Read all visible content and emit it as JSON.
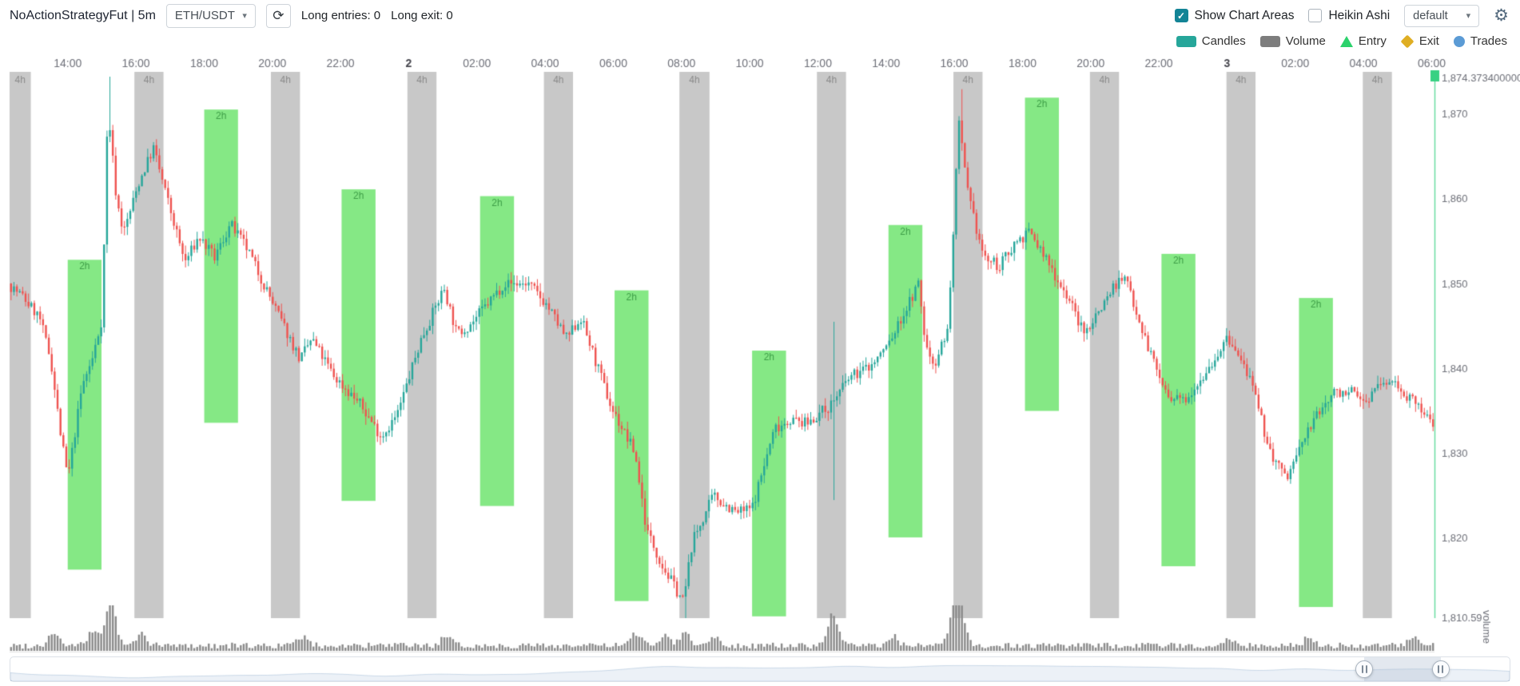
{
  "header": {
    "title": "NoActionStrategyFut | 5m",
    "pair_select": {
      "value": "ETH/USDT"
    },
    "long_entries": "Long entries: 0",
    "long_exit": "Long exit: 0",
    "show_chart_areas": {
      "label": "Show Chart Areas",
      "checked": true
    },
    "heikin_ashi": {
      "label": "Heikin Ashi",
      "checked": false
    },
    "plot_config_select": {
      "value": "default"
    }
  },
  "legend": [
    {
      "label": "Candles",
      "symbol": "rect",
      "color": "#26a69a"
    },
    {
      "label": "Volume",
      "symbol": "rect",
      "color": "#7d7d7d"
    },
    {
      "label": "Entry",
      "symbol": "triangle",
      "color": "#2bd26b"
    },
    {
      "label": "Exit",
      "symbol": "diamond",
      "color": "#dfae23"
    },
    {
      "label": "Trades",
      "symbol": "circle",
      "color": "#5b9bd5"
    }
  ],
  "chart_data": {
    "type": "candlestick",
    "pair": "ETH/USDT",
    "timeframe": "5m",
    "x_axis": {
      "position": "top",
      "tick_labels": [
        "14:00",
        "16:00",
        "18:00",
        "20:00",
        "22:00",
        "2",
        "02:00",
        "04:00",
        "06:00",
        "08:00",
        "10:00",
        "12:00",
        "14:00",
        "16:00",
        "18:00",
        "20:00",
        "22:00",
        "3",
        "02:00",
        "04:00",
        "06:00"
      ],
      "first_tick_t": 0.0408,
      "tick_step_t": 0.04786
    },
    "y_axis": {
      "position": "right",
      "max": 1874.3734,
      "min": 1810.59,
      "tick_labels": [
        "1,874.373400000",
        "1,870",
        "1,860",
        "1,850",
        "1,840",
        "1,830",
        "1,820",
        "1,810.59"
      ],
      "tick_values": [
        1874.3734,
        1870,
        1860,
        1850,
        1840,
        1830,
        1820,
        1810.59
      ]
    },
    "volume_axis_name": "volume",
    "candle_count": 490,
    "price_keyframes": [
      [
        0,
        1850
      ],
      [
        0.01,
        1848.5
      ],
      [
        0.022,
        1846
      ],
      [
        0.03,
        1841
      ],
      [
        0.037,
        1832
      ],
      [
        0.042,
        1827
      ],
      [
        0.052,
        1838
      ],
      [
        0.059,
        1841
      ],
      [
        0.066,
        1846
      ],
      [
        0.07,
        1871
      ],
      [
        0.076,
        1860
      ],
      [
        0.081,
        1856
      ],
      [
        0.092,
        1862
      ],
      [
        0.102,
        1866
      ],
      [
        0.11,
        1861
      ],
      [
        0.124,
        1852.5
      ],
      [
        0.134,
        1855.5
      ],
      [
        0.145,
        1853
      ],
      [
        0.156,
        1857
      ],
      [
        0.168,
        1854
      ],
      [
        0.192,
        1845.5
      ],
      [
        0.205,
        1841
      ],
      [
        0.213,
        1843.5
      ],
      [
        0.229,
        1839
      ],
      [
        0.246,
        1836
      ],
      [
        0.262,
        1832
      ],
      [
        0.273,
        1834.5
      ],
      [
        0.29,
        1843.5
      ],
      [
        0.306,
        1849.5
      ],
      [
        0.315,
        1844
      ],
      [
        0.326,
        1845.5
      ],
      [
        0.348,
        1850
      ],
      [
        0.365,
        1850
      ],
      [
        0.378,
        1847.5
      ],
      [
        0.392,
        1843.5
      ],
      [
        0.402,
        1846
      ],
      [
        0.423,
        1835.5
      ],
      [
        0.44,
        1830
      ],
      [
        0.448,
        1821
      ],
      [
        0.46,
        1816.5
      ],
      [
        0.474,
        1812.5
      ],
      [
        0.48,
        1819.5
      ],
      [
        0.495,
        1825
      ],
      [
        0.511,
        1823
      ],
      [
        0.522,
        1823.5
      ],
      [
        0.538,
        1833
      ],
      [
        0.549,
        1834
      ],
      [
        0.56,
        1833.5
      ],
      [
        0.576,
        1835.5
      ],
      [
        0.591,
        1839
      ],
      [
        0.607,
        1840.5
      ],
      [
        0.62,
        1843.5
      ],
      [
        0.639,
        1850
      ],
      [
        0.644,
        1842.5
      ],
      [
        0.65,
        1840.5
      ],
      [
        0.66,
        1845
      ],
      [
        0.667,
        1869
      ],
      [
        0.674,
        1860
      ],
      [
        0.685,
        1853
      ],
      [
        0.696,
        1852
      ],
      [
        0.707,
        1855
      ],
      [
        0.717,
        1856
      ],
      [
        0.728,
        1853
      ],
      [
        0.745,
        1848
      ],
      [
        0.755,
        1844
      ],
      [
        0.777,
        1850
      ],
      [
        0.785,
        1850.5
      ],
      [
        0.799,
        1843
      ],
      [
        0.815,
        1836
      ],
      [
        0.826,
        1836.5
      ],
      [
        0.842,
        1840
      ],
      [
        0.856,
        1843.5
      ],
      [
        0.87,
        1839.5
      ],
      [
        0.886,
        1830
      ],
      [
        0.897,
        1827
      ],
      [
        0.913,
        1833
      ],
      [
        0.929,
        1837
      ],
      [
        0.94,
        1837.5
      ],
      [
        0.951,
        1836
      ],
      [
        0.962,
        1838
      ],
      [
        0.973,
        1838.5
      ],
      [
        0.986,
        1836
      ],
      [
        1,
        1833.5
      ]
    ],
    "wick_events": [
      {
        "t": 0.07,
        "high": 1874.3734
      },
      {
        "t": 0.474,
        "low": 1810.59
      },
      {
        "t": 0.578,
        "high": 1845.5,
        "low": 1824.5
      },
      {
        "t": 0.667,
        "high": 1872.9
      }
    ],
    "volume_spikes": [
      {
        "t": 0.03,
        "v": 0.3
      },
      {
        "t": 0.058,
        "v": 0.33
      },
      {
        "t": 0.07,
        "v": 1.0
      },
      {
        "t": 0.092,
        "v": 0.27
      },
      {
        "t": 0.205,
        "v": 0.2
      },
      {
        "t": 0.306,
        "v": 0.2
      },
      {
        "t": 0.44,
        "v": 0.28
      },
      {
        "t": 0.46,
        "v": 0.26
      },
      {
        "t": 0.474,
        "v": 0.3
      },
      {
        "t": 0.495,
        "v": 0.22
      },
      {
        "t": 0.578,
        "v": 0.7
      },
      {
        "t": 0.62,
        "v": 0.22
      },
      {
        "t": 0.664,
        "v": 0.85
      },
      {
        "t": 0.668,
        "v": 0.5
      },
      {
        "t": 0.856,
        "v": 0.18
      },
      {
        "t": 0.913,
        "v": 0.2
      },
      {
        "t": 0.986,
        "v": 0.16
      }
    ],
    "chart_areas": {
      "gray": {
        "label": "4h",
        "color": "#c8c8c8",
        "label_color": "#8a8a8a",
        "ranges": [
          [
            0,
            0.0149
          ],
          [
            0.0876,
            0.108
          ],
          [
            0.1834,
            0.2038
          ],
          [
            0.2792,
            0.2996
          ],
          [
            0.375,
            0.3954
          ],
          [
            0.4701,
            0.4912
          ],
          [
            0.5666,
            0.587
          ],
          [
            0.6624,
            0.6828
          ],
          [
            0.7582,
            0.7786
          ],
          [
            0.854,
            0.8744
          ],
          [
            0.9497,
            0.9701
          ]
        ]
      },
      "green": {
        "label": "2h",
        "color": "#85e885",
        "label_color": "#3e9e47",
        "ranges": [
          [
            0.0408,
            0.0645,
            1852.8,
            1816.3
          ],
          [
            0.1366,
            0.1603,
            1870.5,
            1833.6
          ],
          [
            0.233,
            0.2568,
            1861.1,
            1824.4
          ],
          [
            0.3302,
            0.354,
            1860.3,
            1823.8
          ],
          [
            0.4246,
            0.4484,
            1849.2,
            1812.6
          ],
          [
            0.5211,
            0.5449,
            1842.1,
            1810.8
          ],
          [
            0.6168,
            0.6406,
            1856.9,
            1820.1
          ],
          [
            0.7126,
            0.7364,
            1871.9,
            1835
          ],
          [
            0.8084,
            0.8322,
            1853.5,
            1816.7
          ],
          [
            0.9049,
            0.9287,
            1848.3,
            1811.9
          ]
        ]
      }
    },
    "current_price_line": {
      "t": 1,
      "color": "#38d183"
    },
    "datazoom": {
      "start": 0.903,
      "end": 0.954
    },
    "colors": {
      "up": "#26a69a",
      "down": "#ef5350",
      "volume_bar": "#8a8a8a",
      "axis_label": "#6e7079",
      "axis_label_strong": "#45454d"
    }
  }
}
